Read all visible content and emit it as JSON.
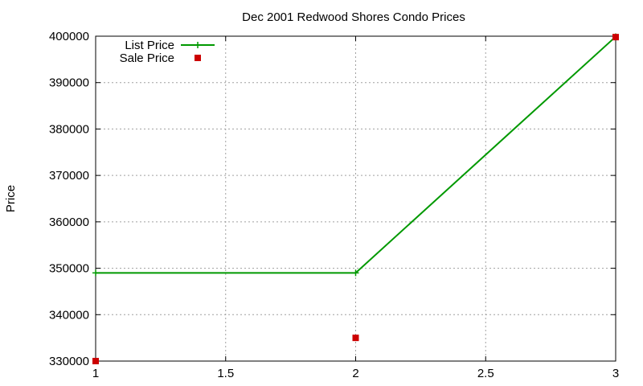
{
  "chart_data": {
    "type": "line",
    "title": "Dec 2001 Redwood Shores Condo Prices",
    "xlabel": "",
    "ylabel": "Price",
    "xlim": [
      1,
      3
    ],
    "ylim": [
      330000,
      400000
    ],
    "x_ticks": [
      1,
      1.5,
      2,
      2.5,
      3
    ],
    "x_tick_labels": [
      "1",
      "1.5",
      "2",
      "2.5",
      "3"
    ],
    "y_ticks": [
      330000,
      340000,
      350000,
      360000,
      370000,
      380000,
      390000,
      400000
    ],
    "y_tick_labels": [
      "330000",
      "340000",
      "350000",
      "360000",
      "370000",
      "380000",
      "390000",
      "400000"
    ],
    "grid": true,
    "legend_position": "top-left",
    "series": [
      {
        "name": "List Price",
        "style": "linespoints",
        "marker": "plus",
        "color": "#009900",
        "x": [
          1,
          2,
          3
        ],
        "y": [
          349000,
          349000,
          399900
        ]
      },
      {
        "name": "Sale Price",
        "style": "points",
        "marker": "square",
        "color": "#cc0000",
        "x": [
          1,
          2,
          3
        ],
        "y": [
          330000,
          335000,
          399800
        ]
      }
    ]
  }
}
